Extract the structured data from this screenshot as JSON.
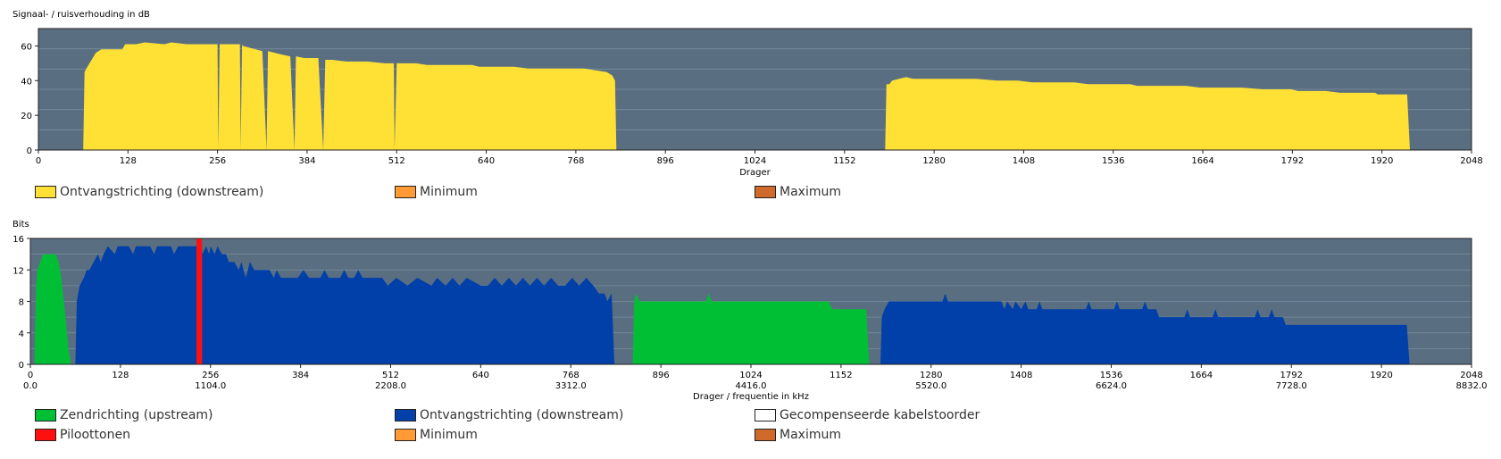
{
  "colors": {
    "plot_bg": "#5a6e82",
    "grid": "#7b8ea2",
    "snr_fill": "#ffe135",
    "upstream": "#00bf35",
    "downstream": "#0040a8",
    "pilot": "#ff1010",
    "compensated": "#ffffff",
    "minimum": "#ff9a35",
    "maximum": "#d06a2a"
  },
  "chart_data": [
    {
      "type": "area",
      "ylabel": "Signaal- / ruisverhouding in dB",
      "xlabel": "Drager",
      "xlim": [
        0,
        2048
      ],
      "ylim": [
        0,
        70
      ],
      "xticks": [
        0,
        128,
        256,
        384,
        512,
        640,
        768,
        896,
        1024,
        1152,
        1280,
        1408,
        1536,
        1664,
        1792,
        1920,
        2048
      ],
      "yticks": [
        0,
        20,
        40,
        60
      ],
      "grid": true,
      "series": [
        {
          "name": "Ontvangstrichting (downstream)",
          "color_key": "snr_fill",
          "points": [
            [
              64,
              0
            ],
            [
              66,
              45
            ],
            [
              70,
              48
            ],
            [
              76,
              52
            ],
            [
              82,
              56
            ],
            [
              90,
              58
            ],
            [
              120,
              58
            ],
            [
              124,
              61
            ],
            [
              140,
              61
            ],
            [
              152,
              62
            ],
            [
              180,
              61
            ],
            [
              190,
              62
            ],
            [
              212,
              61
            ],
            [
              256,
              61
            ],
            [
              257,
              0
            ],
            [
              259,
              61
            ],
            [
              288,
              61
            ],
            [
              289,
              0
            ],
            [
              291,
              61
            ],
            [
              292,
              60
            ],
            [
              320,
              57
            ],
            [
              326,
              0
            ],
            [
              328,
              57
            ],
            [
              348,
              55
            ],
            [
              360,
              54
            ],
            [
              366,
              0
            ],
            [
              368,
              54
            ],
            [
              380,
              53
            ],
            [
              400,
              53
            ],
            [
              407,
              0
            ],
            [
              410,
              52
            ],
            [
              420,
              52
            ],
            [
              440,
              51
            ],
            [
              470,
              51
            ],
            [
              495,
              50
            ],
            [
              508,
              50
            ],
            [
              509,
              0
            ],
            [
              512,
              50
            ],
            [
              540,
              50
            ],
            [
              555,
              49
            ],
            [
              600,
              49
            ],
            [
              620,
              49
            ],
            [
              630,
              48
            ],
            [
              680,
              48
            ],
            [
              700,
              47
            ],
            [
              780,
              47
            ],
            [
              795,
              46
            ],
            [
              812,
              45
            ],
            [
              820,
              43
            ],
            [
              824,
              40
            ],
            [
              826,
              0
            ]
          ]
        },
        {
          "name": "Ontvangstrichting (downstream)",
          "color_key": "snr_fill",
          "points": [
            [
              1210,
              0
            ],
            [
              1212,
              38
            ],
            [
              1216,
              38
            ],
            [
              1220,
              40
            ],
            [
              1230,
              41
            ],
            [
              1240,
              42
            ],
            [
              1250,
              41
            ],
            [
              1320,
              41
            ],
            [
              1340,
              41
            ],
            [
              1370,
              40
            ],
            [
              1400,
              40
            ],
            [
              1420,
              39
            ],
            [
              1480,
              39
            ],
            [
              1500,
              38
            ],
            [
              1560,
              38
            ],
            [
              1570,
              37
            ],
            [
              1640,
              37
            ],
            [
              1660,
              36
            ],
            [
              1720,
              36
            ],
            [
              1750,
              35
            ],
            [
              1790,
              35
            ],
            [
              1800,
              34
            ],
            [
              1840,
              34
            ],
            [
              1860,
              33
            ],
            [
              1910,
              33
            ],
            [
              1914,
              32
            ],
            [
              1956,
              32
            ],
            [
              1960,
              0
            ]
          ]
        }
      ]
    },
    {
      "type": "area",
      "ylabel": "Bits",
      "xlabel": "Drager / frequentie in kHz",
      "xlim": [
        0,
        2048
      ],
      "ylim": [
        0,
        16
      ],
      "xticks": [
        0,
        128,
        256,
        384,
        512,
        640,
        768,
        896,
        1024,
        1152,
        1280,
        1408,
        1536,
        1664,
        1792,
        1920,
        2048
      ],
      "freq_ticks": [
        "0.0",
        "1104.0",
        "2208.0",
        "3312.0",
        "4416.0",
        "5520.0",
        "6624.0",
        "7728.0",
        "8832.0"
      ],
      "yticks": [
        0,
        4,
        8,
        12,
        16
      ],
      "grid": true,
      "series": [
        {
          "name": "Zendrichting (upstream)",
          "color_key": "upstream",
          "points": [
            [
              6,
              0
            ],
            [
              8,
              10
            ],
            [
              10,
              12
            ],
            [
              14,
              13
            ],
            [
              18,
              14
            ],
            [
              36,
              14
            ],
            [
              40,
              13
            ],
            [
              44,
              11
            ],
            [
              50,
              6
            ],
            [
              54,
              2
            ],
            [
              58,
              0
            ]
          ]
        },
        {
          "name": "Ontvangstrichting (downstream)",
          "color_key": "downstream",
          "points": [
            [
              64,
              0
            ],
            [
              66,
              8
            ],
            [
              70,
              10
            ],
            [
              76,
              11
            ],
            [
              80,
              12
            ],
            [
              84,
              12
            ],
            [
              90,
              13
            ],
            [
              96,
              14
            ],
            [
              100,
              13
            ],
            [
              104,
              14
            ],
            [
              110,
              15
            ],
            [
              120,
              14
            ],
            [
              124,
              15
            ],
            [
              140,
              15
            ],
            [
              146,
              14
            ],
            [
              150,
              15
            ],
            [
              170,
              15
            ],
            [
              176,
              14
            ],
            [
              180,
              15
            ],
            [
              200,
              15
            ],
            [
              204,
              14
            ],
            [
              210,
              15
            ],
            [
              240,
              15
            ],
            [
              244,
              14
            ],
            [
              250,
              15
            ],
            [
              254,
              14
            ],
            [
              256,
              15
            ],
            [
              262,
              14
            ],
            [
              266,
              15
            ],
            [
              272,
              14
            ],
            [
              278,
              14
            ],
            [
              282,
              13
            ],
            [
              290,
              13
            ],
            [
              296,
              12
            ],
            [
              300,
              13
            ],
            [
              306,
              11
            ],
            [
              312,
              13
            ],
            [
              318,
              12
            ],
            [
              340,
              12
            ],
            [
              346,
              11
            ],
            [
              350,
              12
            ],
            [
              356,
              11
            ],
            [
              380,
              11
            ],
            [
              388,
              12
            ],
            [
              396,
              11
            ],
            [
              412,
              11
            ],
            [
              418,
              12
            ],
            [
              424,
              11
            ],
            [
              440,
              11
            ],
            [
              446,
              12
            ],
            [
              452,
              11
            ],
            [
              460,
              11
            ],
            [
              466,
              12
            ],
            [
              472,
              11
            ],
            [
              500,
              11
            ],
            [
              508,
              10
            ],
            [
              520,
              11
            ],
            [
              536,
              10
            ],
            [
              550,
              11
            ],
            [
              570,
              10
            ],
            [
              578,
              11
            ],
            [
              590,
              10
            ],
            [
              600,
              11
            ],
            [
              610,
              10
            ],
            [
              620,
              11
            ],
            [
              640,
              10
            ],
            [
              650,
              10
            ],
            [
              660,
              11
            ],
            [
              670,
              10
            ],
            [
              680,
              11
            ],
            [
              690,
              10
            ],
            [
              700,
              11
            ],
            [
              710,
              10
            ],
            [
              720,
              11
            ],
            [
              730,
              10
            ],
            [
              740,
              11
            ],
            [
              750,
              10
            ],
            [
              760,
              10
            ],
            [
              770,
              11
            ],
            [
              780,
              10
            ],
            [
              790,
              11
            ],
            [
              800,
              10
            ],
            [
              808,
              9
            ],
            [
              816,
              9
            ],
            [
              820,
              8
            ],
            [
              826,
              9
            ],
            [
              830,
              0
            ]
          ]
        },
        {
          "name": "Zendrichting (upstream)",
          "color_key": "upstream",
          "points": [
            [
              856,
              0
            ],
            [
              858,
              8
            ],
            [
              860,
              9
            ],
            [
              866,
              8
            ],
            [
              960,
              8
            ],
            [
              964,
              9
            ],
            [
              968,
              8
            ],
            [
              1134,
              8
            ],
            [
              1140,
              7
            ],
            [
              1188,
              7
            ],
            [
              1192,
              0
            ]
          ]
        },
        {
          "name": "Ontvangstrichting (downstream)",
          "color_key": "downstream",
          "points": [
            [
              1208,
              0
            ],
            [
              1210,
              6
            ],
            [
              1214,
              7
            ],
            [
              1220,
              8
            ],
            [
              1296,
              8
            ],
            [
              1300,
              9
            ],
            [
              1304,
              8
            ],
            [
              1380,
              8
            ],
            [
              1384,
              7
            ],
            [
              1388,
              8
            ],
            [
              1396,
              7
            ],
            [
              1400,
              8
            ],
            [
              1408,
              7
            ],
            [
              1414,
              8
            ],
            [
              1418,
              7
            ],
            [
              1430,
              7
            ],
            [
              1434,
              8
            ],
            [
              1438,
              7
            ],
            [
              1500,
              7
            ],
            [
              1504,
              8
            ],
            [
              1508,
              7
            ],
            [
              1540,
              7
            ],
            [
              1544,
              8
            ],
            [
              1548,
              7
            ],
            [
              1580,
              7
            ],
            [
              1584,
              8
            ],
            [
              1588,
              7
            ],
            [
              1600,
              7
            ],
            [
              1604,
              6
            ],
            [
              1640,
              6
            ],
            [
              1644,
              7
            ],
            [
              1648,
              6
            ],
            [
              1680,
              6
            ],
            [
              1684,
              7
            ],
            [
              1688,
              6
            ],
            [
              1740,
              6
            ],
            [
              1744,
              7
            ],
            [
              1748,
              6
            ],
            [
              1760,
              6
            ],
            [
              1764,
              7
            ],
            [
              1768,
              6
            ],
            [
              1780,
              6
            ],
            [
              1784,
              5
            ],
            [
              1956,
              5
            ],
            [
              1960,
              0
            ]
          ]
        },
        {
          "name": "Piloottonen",
          "color_key": "pilot",
          "bar": [
            236,
            244,
            16
          ]
        }
      ]
    }
  ],
  "legend1": [
    {
      "label": "Ontvangstrichting (downstream)",
      "color_key": "snr_fill"
    },
    {
      "label": "Minimum",
      "color_key": "minimum"
    },
    {
      "label": "Maximum",
      "color_key": "maximum"
    }
  ],
  "legend2": [
    {
      "label": "Zendrichting (upstream)",
      "color_key": "upstream"
    },
    {
      "label": "Ontvangstrichting (downstream)",
      "color_key": "downstream"
    },
    {
      "label": "Gecompenseerde kabelstoorder",
      "color_key": "compensated"
    },
    {
      "label": "Piloottonen",
      "color_key": "pilot"
    },
    {
      "label": "Minimum",
      "color_key": "minimum"
    },
    {
      "label": "Maximum",
      "color_key": "maximum"
    }
  ]
}
